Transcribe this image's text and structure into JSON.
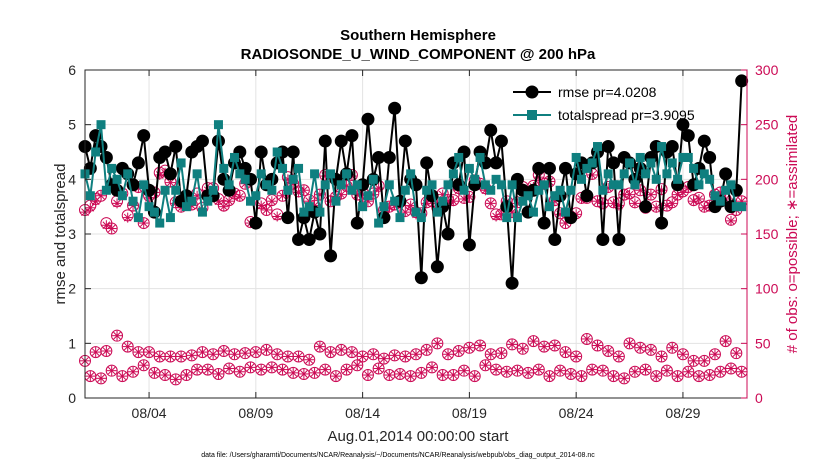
{
  "chart_data": {
    "type": "line",
    "title": "Southern Hemisphere",
    "subtitle": "RADIOSONDE_U_WIND_COMPONENT @ 200 hPa",
    "xlabel": "Aug.01,2014 00:00:00 start",
    "ylabel": "rmse and totalspread",
    "ylabel_right": "# of obs: o=possible; ∗=assimilated",
    "footnote": "data file: /Users/gharamti/Documents/NCAR/Reanalysis/~/Documents/NCAR/Reanalysis/webpub/obs_diag_output_2014-08.nc",
    "xlim": [
      1,
      32
    ],
    "ylim": [
      0,
      6
    ],
    "ylim_right": [
      0,
      300
    ],
    "x_ticks": [
      4,
      9,
      14,
      19,
      24,
      29
    ],
    "x_tick_labels": [
      "08/04",
      "08/09",
      "08/14",
      "08/19",
      "08/24",
      "08/29"
    ],
    "y_ticks": [
      0,
      1,
      2,
      3,
      4,
      5,
      6
    ],
    "y_ticks_right": [
      0,
      50,
      100,
      150,
      200,
      250,
      300
    ],
    "grid": true,
    "legend_position": "top-right",
    "colors": {
      "rmse": "#000000",
      "spread": "#0f7f7f",
      "obs": "#cc0a55"
    },
    "x": [
      1.0,
      1.25,
      1.5,
      1.75,
      2.0,
      2.25,
      2.5,
      2.75,
      3.0,
      3.25,
      3.5,
      3.75,
      4.0,
      4.25,
      4.5,
      4.75,
      5.0,
      5.25,
      5.5,
      5.75,
      6.0,
      6.25,
      6.5,
      6.75,
      7.0,
      7.25,
      7.5,
      7.75,
      8.0,
      8.25,
      8.5,
      8.75,
      9.0,
      9.25,
      9.5,
      9.75,
      10.0,
      10.25,
      10.5,
      10.75,
      11.0,
      11.25,
      11.5,
      11.75,
      12.0,
      12.25,
      12.5,
      12.75,
      13.0,
      13.25,
      13.5,
      13.75,
      14.0,
      14.25,
      14.5,
      14.75,
      15.0,
      15.25,
      15.5,
      15.75,
      16.0,
      16.25,
      16.5,
      16.75,
      17.0,
      17.25,
      17.5,
      17.75,
      18.0,
      18.25,
      18.5,
      18.75,
      19.0,
      19.25,
      19.5,
      19.75,
      20.0,
      20.25,
      20.5,
      20.75,
      21.0,
      21.25,
      21.5,
      21.75,
      22.0,
      22.25,
      22.5,
      22.75,
      23.0,
      23.25,
      23.5,
      23.75,
      24.0,
      24.25,
      24.5,
      24.75,
      25.0,
      25.25,
      25.5,
      25.75,
      26.0,
      26.25,
      26.5,
      26.75,
      27.0,
      27.25,
      27.5,
      27.75,
      28.0,
      28.25,
      28.5,
      28.75,
      29.0,
      29.25,
      29.5,
      29.75,
      30.0,
      30.25,
      30.5,
      30.75,
      31.0,
      31.25,
      31.5,
      31.75
    ],
    "series": [
      {
        "name": "rmse",
        "legend_label": "rmse pr=4.0208",
        "marker": "circle",
        "values": [
          4.6,
          4.2,
          4.8,
          4.6,
          4.4,
          3.9,
          3.8,
          4.2,
          4.1,
          3.9,
          4.3,
          4.8,
          3.8,
          3.4,
          4.4,
          4.5,
          4.1,
          4.6,
          3.6,
          3.7,
          4.5,
          4.6,
          4.7,
          3.7,
          3.7,
          4.7,
          4.0,
          3.8,
          4.3,
          4.5,
          4.2,
          4.0,
          3.2,
          4.5,
          3.9,
          4.0,
          4.3,
          4.5,
          3.3,
          4.5,
          2.9,
          3.3,
          2.9,
          3.4,
          3.0,
          4.7,
          2.6,
          4.0,
          4.7,
          4.1,
          4.8,
          3.2,
          3.9,
          5.1,
          4.0,
          4.4,
          3.3,
          4.4,
          5.3,
          3.6,
          4.7,
          4.0,
          3.9,
          2.2,
          4.3,
          3.7,
          2.4,
          3.5,
          3.0,
          4.3,
          3.9,
          4.5,
          2.8,
          3.9,
          4.5,
          4.3,
          4.9,
          4.3,
          4.7,
          3.5,
          2.1,
          4.0,
          3.8,
          3.4,
          3.8,
          4.2,
          3.2,
          4.2,
          2.9,
          3.7,
          4.2,
          3.3,
          4.1,
          4.3,
          3.7,
          4.3,
          4.5,
          2.9,
          4.6,
          4.3,
          2.9,
          4.4,
          4.3,
          4.0,
          4.2,
          3.5,
          4.4,
          4.6,
          3.2,
          4.5,
          4.6,
          3.9,
          5.0,
          4.8,
          3.9,
          4.2,
          4.7,
          4.4,
          3.5,
          3.6,
          4.1,
          3.5,
          3.8,
          5.8
        ]
      },
      {
        "name": "totalspread",
        "legend_label": "totalspread pr=3.9095",
        "marker": "square",
        "values": [
          4.1,
          3.7,
          4.5,
          5.0,
          3.8,
          4.2,
          4.0,
          3.7,
          4.1,
          3.6,
          3.3,
          3.9,
          3.5,
          3.4,
          3.2,
          3.8,
          3.3,
          3.8,
          4.3,
          3.5,
          3.6,
          4.1,
          3.4,
          3.6,
          3.8,
          5.0,
          4.2,
          3.9,
          4.4,
          4.1,
          4.0,
          3.6,
          3.7,
          4.1,
          3.9,
          3.8,
          4.5,
          4.2,
          3.8,
          4.0,
          4.2,
          3.4,
          3.5,
          4.1,
          3.4,
          3.9,
          4.1,
          3.6,
          3.9,
          4.1,
          3.8,
          3.9,
          3.5,
          3.7,
          4.0,
          3.2,
          3.5,
          3.9,
          3.6,
          3.3,
          3.8,
          4.1,
          3.4,
          3.3,
          3.8,
          3.9,
          3.4,
          3.6,
          3.9,
          4.1,
          4.4,
          3.8,
          4.2,
          4.0,
          4.4,
          3.9,
          3.8,
          4.0,
          3.9,
          3.3,
          3.9,
          3.3,
          3.6,
          3.7,
          3.4,
          3.8,
          3.9,
          3.5,
          3.7,
          3.8,
          3.4,
          3.8,
          4.4,
          4.0,
          4.2,
          4.3,
          4.6,
          3.8,
          4.1,
          3.9,
          3.9,
          4.1,
          4.3,
          3.9,
          4.4,
          4.1,
          4.3,
          4.0,
          4.6,
          4.1,
          4.3,
          4.0,
          4.4,
          4.4,
          4.2,
          3.9,
          4.1,
          4.0,
          3.7,
          3.6,
          3.8,
          3.9,
          3.5,
          3.5
        ]
      },
      {
        "name": "obs possible",
        "axis": "right",
        "marker": "circle-open",
        "values": [
          172,
          176,
          182,
          185,
          160,
          155,
          180,
          187,
          167,
          176,
          193,
          160,
          185,
          188,
          206,
          208,
          198,
          179,
          175,
          182,
          177,
          187,
          174,
          192,
          192,
          182,
          176,
          181,
          187,
          185,
          196,
          161,
          160,
          178,
          172,
          181,
          168,
          185,
          202,
          196,
          189,
          190,
          181,
          176,
          186,
          204,
          180,
          184,
          187,
          194,
          204,
          186,
          188,
          180,
          187,
          194,
          172,
          175,
          177,
          179,
          171,
          177,
          170,
          169,
          179,
          180,
          174,
          187,
          181,
          181,
          192,
          183,
          184,
          199,
          196,
          192,
          178,
          168,
          168,
          180,
          170,
          179,
          193,
          188,
          194,
          204,
          196,
          198,
          181,
          169,
          160,
          165,
          169,
          183,
          183,
          205,
          180,
          178,
          193,
          179,
          178,
          186,
          187,
          179,
          190,
          174,
          186,
          175,
          191,
          176,
          179,
          186,
          189,
          193,
          181,
          183,
          175,
          176,
          186,
          188,
          182,
          163,
          172,
          180
        ]
      },
      {
        "name": "obs assimilated",
        "axis": "right",
        "marker": "asterisk",
        "values": [
          170,
          174,
          180,
          185,
          158,
          155,
          178,
          186,
          165,
          176,
          192,
          160,
          183,
          188,
          204,
          206,
          197,
          178,
          174,
          182,
          176,
          185,
          172,
          190,
          190,
          180,
          175,
          180,
          186,
          184,
          196,
          160,
          159,
          176,
          172,
          180,
          166,
          185,
          200,
          196,
          188,
          190,
          180,
          176,
          186,
          203,
          180,
          184,
          186,
          194,
          203,
          186,
          186,
          180,
          186,
          192,
          171,
          174,
          176,
          178,
          170,
          176,
          168,
          168,
          178,
          180,
          172,
          186,
          180,
          180,
          190,
          182,
          184,
          198,
          195,
          190,
          178,
          166,
          168,
          180,
          170,
          178,
          192,
          188,
          193,
          202,
          195,
          198,
          180,
          168,
          160,
          164,
          168,
          182,
          183,
          204,
          180,
          178,
          192,
          178,
          176,
          186,
          186,
          178,
          190,
          174,
          186,
          174,
          190,
          176,
          178,
          186,
          188,
          192,
          180,
          182,
          174,
          176,
          186,
          188,
          182,
          162,
          172,
          180
        ]
      },
      {
        "name": "obs possible (low cycle)",
        "axis": "right",
        "marker": "circle-open",
        "values": [
          34,
          20,
          42,
          18,
          43,
          25,
          57,
          20,
          47,
          24,
          42,
          30,
          42,
          23,
          38,
          21,
          38,
          17,
          38,
          21,
          39,
          26,
          42,
          26,
          40,
          22,
          43,
          27,
          40,
          24,
          41,
          28,
          42,
          26,
          44,
          28,
          40,
          26,
          38,
          23,
          38,
          22,
          35,
          23,
          47,
          26,
          42,
          20,
          44,
          26,
          42,
          30,
          38,
          21,
          40,
          27,
          36,
          21,
          39,
          22,
          38,
          20,
          40,
          23,
          44,
          28,
          50,
          21,
          40,
          21,
          43,
          25,
          46,
          20,
          48,
          30,
          40,
          26,
          41,
          24,
          49,
          25,
          45,
          23,
          52,
          26,
          47,
          20,
          48,
          25,
          42,
          22,
          38,
          20,
          54,
          26,
          48,
          25,
          43,
          20,
          38,
          18,
          50,
          24,
          46,
          26,
          44,
          20,
          38,
          25,
          46,
          20,
          40,
          24,
          34,
          20,
          34,
          21,
          40,
          24,
          52,
          27,
          41,
          24
        ]
      },
      {
        "name": "obs assimilated (low cycle)",
        "axis": "right",
        "marker": "asterisk",
        "values": [
          34,
          20,
          42,
          18,
          43,
          25,
          57,
          20,
          47,
          24,
          42,
          30,
          42,
          23,
          38,
          21,
          38,
          17,
          38,
          21,
          39,
          26,
          42,
          26,
          40,
          22,
          43,
          27,
          40,
          24,
          41,
          28,
          42,
          26,
          44,
          28,
          40,
          26,
          38,
          23,
          38,
          22,
          35,
          23,
          47,
          26,
          42,
          20,
          44,
          26,
          42,
          30,
          38,
          21,
          40,
          27,
          36,
          21,
          39,
          22,
          38,
          20,
          40,
          23,
          44,
          28,
          50,
          21,
          40,
          21,
          43,
          25,
          46,
          20,
          48,
          30,
          40,
          26,
          41,
          24,
          49,
          25,
          45,
          23,
          52,
          26,
          47,
          20,
          48,
          25,
          42,
          22,
          38,
          20,
          54,
          26,
          48,
          25,
          43,
          20,
          38,
          18,
          50,
          24,
          46,
          26,
          44,
          20,
          38,
          25,
          46,
          20,
          40,
          24,
          34,
          20,
          34,
          21,
          40,
          24,
          52,
          27,
          41,
          24
        ]
      }
    ]
  }
}
